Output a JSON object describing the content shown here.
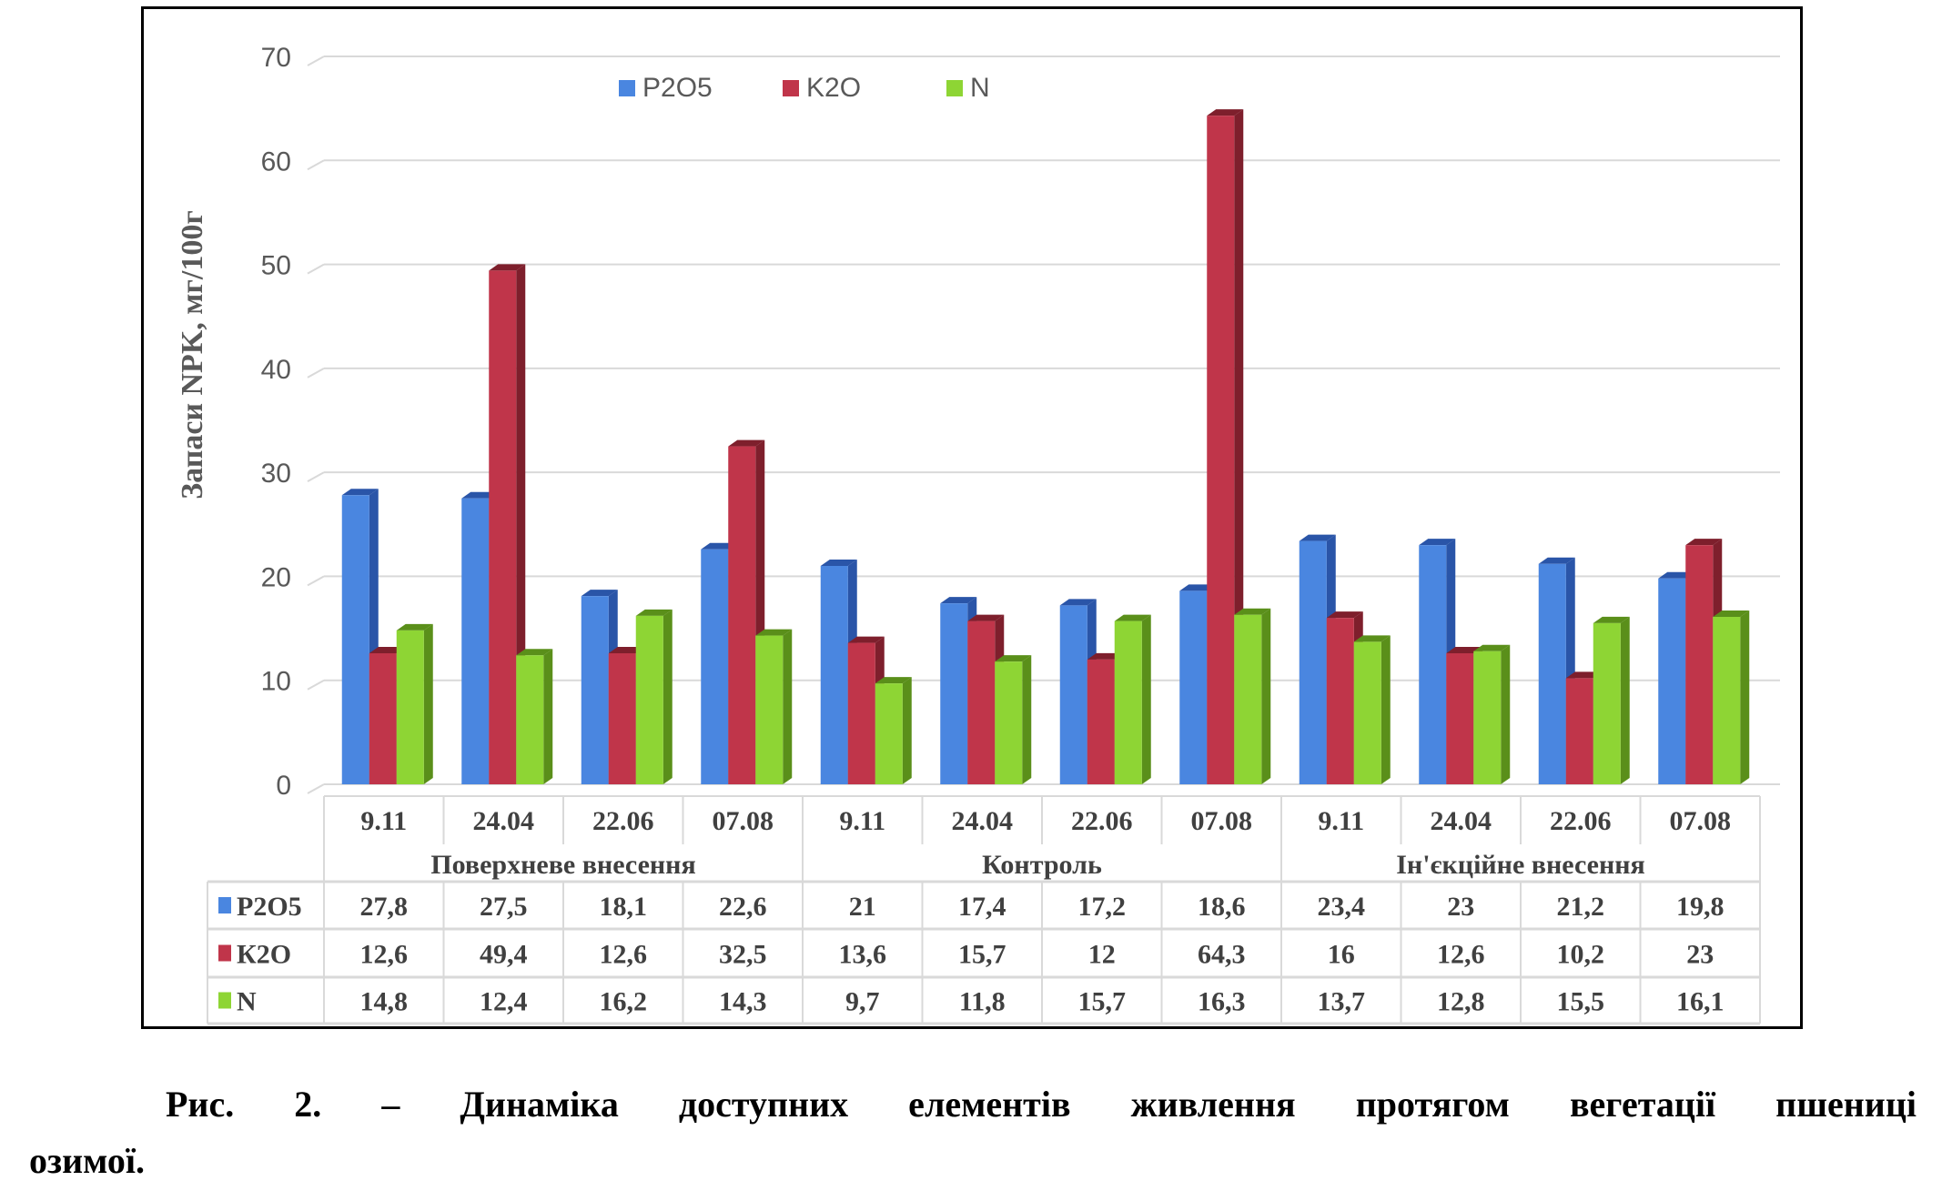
{
  "chart_data": {
    "type": "bar",
    "ylabel": "Запаси NPK, мг/100г",
    "ylim": [
      0,
      70
    ],
    "yticks": [
      0,
      10,
      20,
      30,
      40,
      50,
      60,
      70
    ],
    "grid": true,
    "legend_position": "top",
    "groups": [
      {
        "label": "Поверхневе внесення",
        "dates": [
          "9.11",
          "24.04",
          "22.06",
          "07.08"
        ]
      },
      {
        "label": "Контроль",
        "dates": [
          "9.11",
          "24.04",
          "22.06",
          "07.08"
        ]
      },
      {
        "label": "Ін'єкційне внесення",
        "dates": [
          "9.11",
          "24.04",
          "22.06",
          "07.08"
        ]
      }
    ],
    "series": [
      {
        "name": "P2O5",
        "color": "#4a86e0",
        "side": "#2a55a8",
        "values": [
          27.8,
          27.5,
          18.1,
          22.6,
          21,
          17.4,
          17.2,
          18.6,
          23.4,
          23,
          21.2,
          19.8
        ],
        "labels": [
          "27,8",
          "27,5",
          "18,1",
          "22,6",
          "21",
          "17,4",
          "17,2",
          "18,6",
          "23,4",
          "23",
          "21,2",
          "19,8"
        ]
      },
      {
        "name": "K2O",
        "color": "#c0354a",
        "side": "#7e1f2c",
        "values": [
          12.6,
          49.4,
          12.6,
          32.5,
          13.6,
          15.7,
          12,
          64.3,
          16,
          12.6,
          10.2,
          23
        ],
        "labels": [
          "12,6",
          "49,4",
          "12,6",
          "32,5",
          "13,6",
          "15,7",
          "12",
          "64,3",
          "16",
          "12,6",
          "10,2",
          "23"
        ]
      },
      {
        "name": "N",
        "color": "#8ed534",
        "side": "#5a8f1a",
        "values": [
          14.8,
          12.4,
          16.2,
          14.3,
          9.7,
          11.8,
          15.7,
          16.3,
          13.7,
          12.8,
          15.5,
          16.1
        ],
        "labels": [
          "14,8",
          "12,4",
          "16,2",
          "14,3",
          "9,7",
          "11,8",
          "15,7",
          "16,3",
          "13,7",
          "12,8",
          "15,5",
          "16,1"
        ]
      }
    ],
    "table_series_labels": [
      "P2O5",
      "К2О",
      "N"
    ]
  },
  "caption": {
    "line1": "Рис. 2. – Динаміка доступних елементів живлення протягом вегетації пшениці",
    "line2": "озимої."
  }
}
